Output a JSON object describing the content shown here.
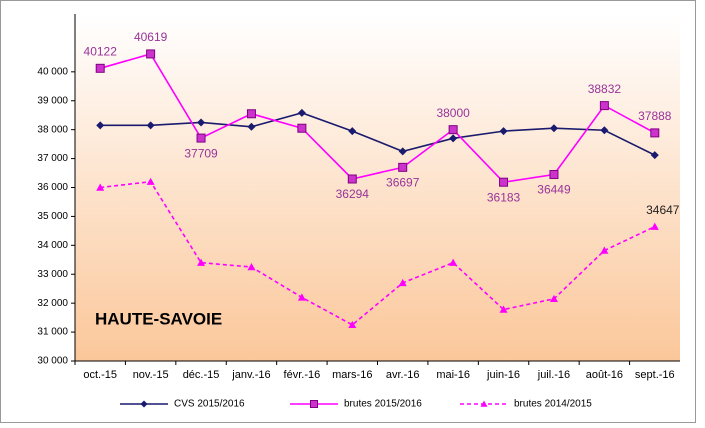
{
  "chart_data": {
    "type": "line",
    "annotation": "HAUTE-SAVOIE",
    "categories": [
      "oct.-15",
      "nov.-15",
      "déc.-15",
      "janv.-16",
      "févr.-16",
      "mars-16",
      "avr.-16",
      "mai-16",
      "juin-16",
      "juil.-16",
      "août-16",
      "sept.-16"
    ],
    "series": [
      {
        "name": "CVS 2015/2016",
        "color": "#1a1a6e",
        "marker": "diamond",
        "dash": false,
        "values": [
          38150,
          38150,
          38250,
          38100,
          38580,
          37950,
          37250,
          37700,
          37950,
          38050,
          37980,
          37120
        ]
      },
      {
        "name": "brutes 2015/2016",
        "color": "#ff00ff",
        "marker": "square",
        "dash": false,
        "label_color": "#993399",
        "values": [
          40122,
          40619,
          37709,
          38550,
          38050,
          36294,
          36697,
          38000,
          36183,
          36449,
          38832,
          37888
        ],
        "value_labels": [
          "40122",
          "40619",
          "37709",
          null,
          null,
          "36294",
          "36697",
          "38000",
          "36183",
          "36449",
          "38832",
          "37888"
        ]
      },
      {
        "name": "brutes 2014/2015",
        "color": "#ff00ff",
        "marker": "triangle",
        "dash": true,
        "label_color": "#222222",
        "values": [
          36000,
          36200,
          33400,
          33250,
          32200,
          31250,
          32700,
          33400,
          31780,
          32150,
          33820,
          34647
        ],
        "value_labels": [
          null,
          null,
          null,
          null,
          null,
          null,
          null,
          null,
          null,
          null,
          null,
          "34647"
        ]
      }
    ],
    "ylim": [
      30000,
      42000
    ],
    "yticks": [
      {
        "value": 30000,
        "label": "30 000"
      },
      {
        "value": 31000,
        "label": "31 000"
      },
      {
        "value": 32000,
        "label": "32 000"
      },
      {
        "value": 33000,
        "label": "33 000"
      },
      {
        "value": 34000,
        "label": "34 000"
      },
      {
        "value": 35000,
        "label": "35 000"
      },
      {
        "value": 36000,
        "label": "36 000"
      },
      {
        "value": 37000,
        "label": "37 000"
      },
      {
        "value": 38000,
        "label": "38 000"
      },
      {
        "value": 39000,
        "label": "39 000"
      },
      {
        "value": 40000,
        "label": "40 000"
      }
    ],
    "legend": "bottom"
  }
}
